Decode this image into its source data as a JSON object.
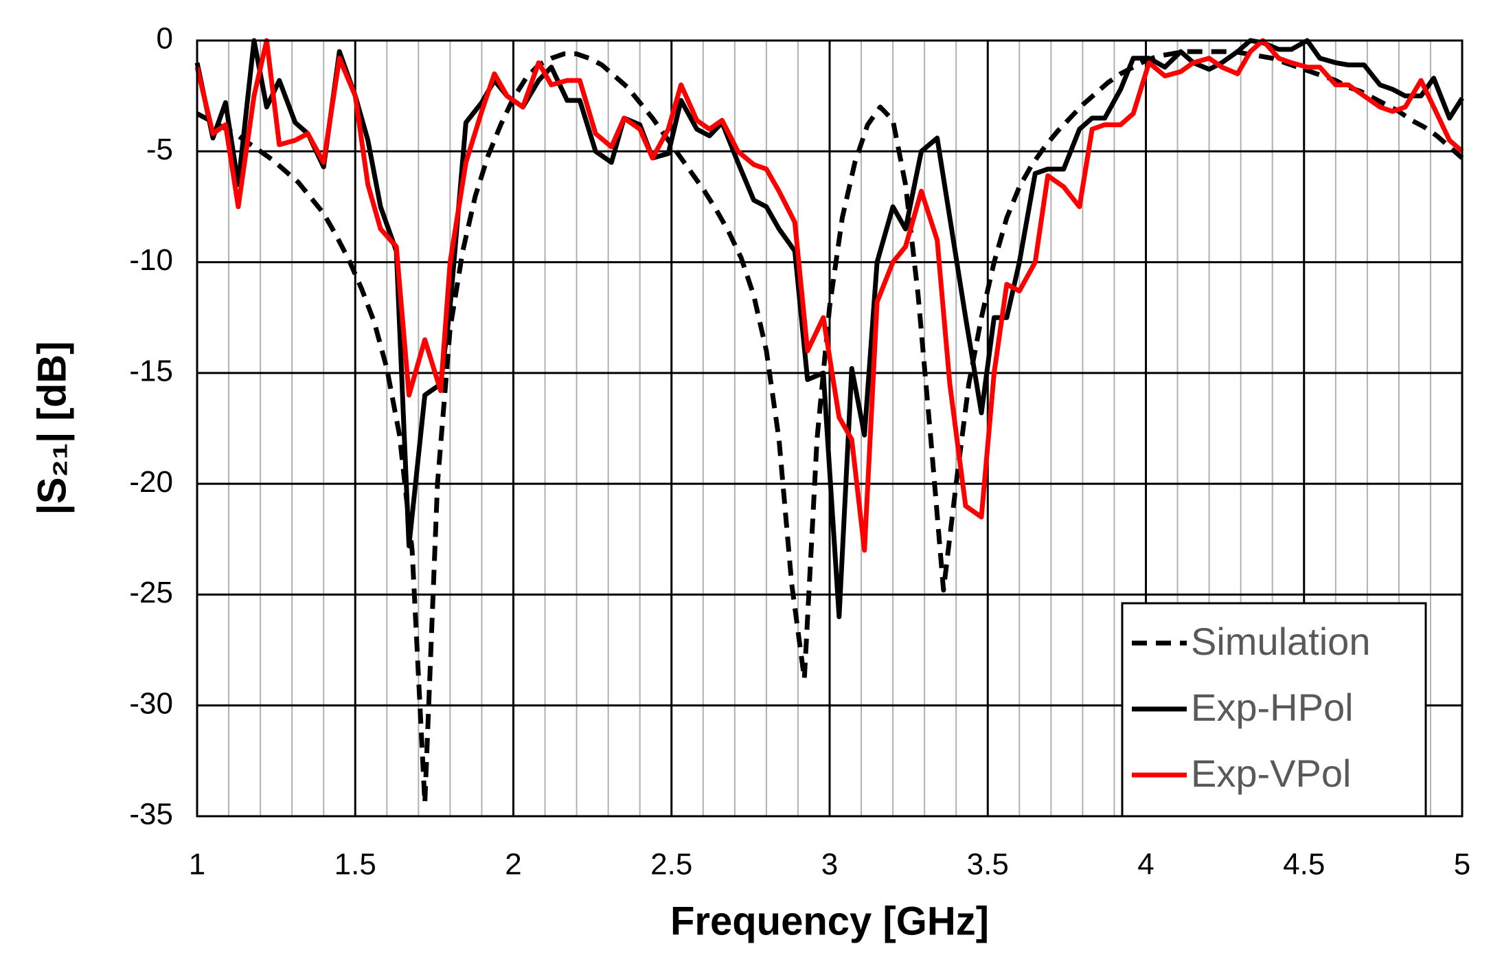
{
  "chart_data": {
    "type": "line",
    "xlabel": "Frequency [GHz]",
    "ylabel": "|S₂₁| [dB]",
    "xlim": [
      1,
      5
    ],
    "ylim": [
      -35,
      0
    ],
    "xticks": [
      1,
      1.5,
      2,
      2.5,
      3,
      3.5,
      4,
      4.5,
      5
    ],
    "xminor": [
      1.1,
      1.2,
      1.3,
      1.4,
      1.6,
      1.7,
      1.8,
      1.9,
      2.1,
      2.2,
      2.3,
      2.4,
      2.6,
      2.7,
      2.8,
      2.9,
      3.1,
      3.2,
      3.3,
      3.4,
      3.6,
      3.7,
      3.8,
      3.9,
      4.1,
      4.2,
      4.3,
      4.4,
      4.6,
      4.7,
      4.8,
      4.9
    ],
    "yticks": [
      0,
      -5,
      -10,
      -15,
      -20,
      -25,
      -30,
      -35
    ],
    "grid": true,
    "legend": "lower right",
    "series": [
      {
        "name": "Simulation",
        "color": "#000000",
        "dashed": true,
        "x": [
          1,
          1.04,
          1.08,
          1.12,
          1.16,
          1.2,
          1.24,
          1.28,
          1.32,
          1.36,
          1.4,
          1.44,
          1.48,
          1.52,
          1.56,
          1.6,
          1.64,
          1.68,
          1.72,
          1.76,
          1.8,
          1.84,
          1.88,
          1.92,
          1.96,
          2,
          2.04,
          2.08,
          2.12,
          2.16,
          2.2,
          2.24,
          2.28,
          2.32,
          2.36,
          2.4,
          2.44,
          2.48,
          2.52,
          2.56,
          2.6,
          2.64,
          2.68,
          2.72,
          2.76,
          2.8,
          2.84,
          2.88,
          2.92,
          2.96,
          3,
          3.04,
          3.08,
          3.12,
          3.16,
          3.2,
          3.24,
          3.28,
          3.32,
          3.36,
          3.4,
          3.44,
          3.48,
          3.52,
          3.56,
          3.6,
          3.64,
          3.68,
          3.72,
          3.76,
          3.8,
          3.84,
          3.88,
          3.92,
          3.96,
          4,
          4.04,
          4.08,
          4.12,
          4.16,
          4.2,
          4.24,
          4.28,
          4.32,
          4.36,
          4.4,
          4.44,
          4.48,
          4.52,
          4.56,
          4.6,
          4.64,
          4.68,
          4.72,
          4.76,
          4.8,
          4.84,
          4.88,
          4.92,
          4.96,
          5
        ],
        "values": [
          -3.3,
          -3.6,
          -3.9,
          -4.2,
          -4.6,
          -5,
          -5.4,
          -5.9,
          -6.4,
          -7.1,
          -7.8,
          -8.8,
          -9.9,
          -11.2,
          -12.7,
          -14.8,
          -17.8,
          -23,
          -34.4,
          -20,
          -13,
          -9.5,
          -7,
          -5.2,
          -3.8,
          -2.6,
          -1.7,
          -1.1,
          -0.8,
          -0.6,
          -0.6,
          -0.8,
          -1.1,
          -1.6,
          -2.1,
          -2.8,
          -3.5,
          -4.3,
          -5.1,
          -5.9,
          -6.7,
          -7.6,
          -8.6,
          -9.8,
          -11.5,
          -14,
          -18,
          -24.5,
          -28.8,
          -18,
          -12,
          -8,
          -5.5,
          -3.8,
          -3,
          -3.6,
          -6.5,
          -11.5,
          -18,
          -24.8,
          -20,
          -15.5,
          -12.5,
          -10,
          -8,
          -6.6,
          -5.6,
          -4.8,
          -4.1,
          -3.5,
          -2.9,
          -2.4,
          -1.9,
          -1.5,
          -1.2,
          -0.9,
          -0.7,
          -0.6,
          -0.5,
          -0.5,
          -0.5,
          -0.5,
          -0.5,
          -0.6,
          -0.7,
          -0.8,
          -1,
          -1.2,
          -1.4,
          -1.6,
          -1.8,
          -2.1,
          -2.3,
          -2.6,
          -2.9,
          -3.2,
          -3.6,
          -3.9,
          -4.3,
          -4.8,
          -5.3
        ]
      },
      {
        "name": "Exp-HPol",
        "color": "#000000",
        "x": [
          1,
          1.05,
          1.09,
          1.13,
          1.18,
          1.22,
          1.26,
          1.31,
          1.35,
          1.4,
          1.45,
          1.5,
          1.54,
          1.58,
          1.63,
          1.67,
          1.72,
          1.77,
          1.8,
          1.85,
          1.9,
          1.94,
          1.98,
          2.03,
          2.08,
          2.12,
          2.17,
          2.21,
          2.26,
          2.31,
          2.35,
          2.4,
          2.44,
          2.49,
          2.53,
          2.58,
          2.62,
          2.66,
          2.71,
          2.76,
          2.8,
          2.84,
          2.89,
          2.93,
          2.98,
          3.03,
          3.07,
          3.11,
          3.15,
          3.2,
          3.24,
          3.29,
          3.34,
          3.38,
          3.43,
          3.48,
          3.52,
          3.56,
          3.6,
          3.65,
          3.69,
          3.74,
          3.79,
          3.83,
          3.87,
          3.92,
          3.96,
          4.01,
          4.06,
          4.11,
          4.15,
          4.2,
          4.24,
          4.29,
          4.33,
          4.37,
          4.42,
          4.46,
          4.51,
          4.55,
          4.6,
          4.64,
          4.69,
          4.74,
          4.78,
          4.82,
          4.87,
          4.91,
          4.96,
          5
        ],
        "values": [
          -1,
          -4.4,
          -2.8,
          -6.5,
          0,
          -3,
          -1.8,
          -3.7,
          -4.2,
          -5.7,
          -0.5,
          -2.5,
          -4.5,
          -7.5,
          -9.5,
          -22.8,
          -16,
          -15.5,
          -12,
          -3.7,
          -2.8,
          -1.8,
          -2.5,
          -3,
          -1.8,
          -1.2,
          -2.7,
          -2.7,
          -5,
          -5.5,
          -3.5,
          -3.8,
          -5.3,
          -5.1,
          -2.7,
          -4,
          -4.3,
          -3.7,
          -5.5,
          -7.2,
          -7.5,
          -8.5,
          -9.5,
          -15.3,
          -15,
          -26,
          -14.8,
          -17.8,
          -10,
          -7.5,
          -8.5,
          -5,
          -4.4,
          -8,
          -12.5,
          -16.8,
          -12.5,
          -12.5,
          -10,
          -6,
          -5.8,
          -5.8,
          -4,
          -3.5,
          -3.5,
          -2.2,
          -0.8,
          -0.8,
          -1.2,
          -0.5,
          -1,
          -1.3,
          -1,
          -0.5,
          0,
          -0.1,
          -0.4,
          -0.4,
          0,
          -0.8,
          -1,
          -1.1,
          -1.1,
          -2,
          -2.2,
          -2.5,
          -2.5,
          -1.7,
          -3.5,
          -2.6
        ]
      },
      {
        "name": "Exp-VPol",
        "color": "#ff0000",
        "x": [
          1,
          1.05,
          1.09,
          1.13,
          1.18,
          1.22,
          1.26,
          1.31,
          1.35,
          1.4,
          1.45,
          1.5,
          1.54,
          1.58,
          1.63,
          1.67,
          1.72,
          1.77,
          1.8,
          1.85,
          1.9,
          1.94,
          1.98,
          2.03,
          2.08,
          2.12,
          2.17,
          2.21,
          2.26,
          2.31,
          2.35,
          2.4,
          2.44,
          2.49,
          2.53,
          2.58,
          2.62,
          2.66,
          2.71,
          2.76,
          2.8,
          2.84,
          2.89,
          2.93,
          2.98,
          3.03,
          3.07,
          3.11,
          3.15,
          3.2,
          3.24,
          3.29,
          3.34,
          3.38,
          3.43,
          3.48,
          3.52,
          3.56,
          3.6,
          3.65,
          3.69,
          3.74,
          3.79,
          3.83,
          3.87,
          3.92,
          3.96,
          4.01,
          4.06,
          4.11,
          4.15,
          4.2,
          4.24,
          4.29,
          4.33,
          4.37,
          4.42,
          4.46,
          4.51,
          4.55,
          4.6,
          4.64,
          4.69,
          4.74,
          4.78,
          4.82,
          4.87,
          4.91,
          4.96,
          5
        ],
        "values": [
          -1.2,
          -4.2,
          -3.8,
          -7.5,
          -2.5,
          0,
          -4.7,
          -4.5,
          -4.2,
          -5.5,
          -0.8,
          -2.5,
          -6.5,
          -8.5,
          -9.3,
          -16,
          -13.5,
          -15.8,
          -10,
          -5.5,
          -3.2,
          -1.5,
          -2.5,
          -3,
          -1,
          -2,
          -1.8,
          -1.8,
          -4.2,
          -4.8,
          -3.5,
          -4,
          -5.3,
          -4,
          -2,
          -3.6,
          -4,
          -3.6,
          -5,
          -5.6,
          -5.8,
          -6.8,
          -8.2,
          -14,
          -12.5,
          -17,
          -18,
          -23,
          -11.8,
          -10,
          -9.3,
          -6.8,
          -9,
          -15.5,
          -21,
          -21.5,
          -15,
          -11,
          -11.3,
          -10,
          -6.1,
          -6.6,
          -7.5,
          -4,
          -3.8,
          -3.8,
          -3.3,
          -1,
          -1.6,
          -1.4,
          -1,
          -0.8,
          -1.2,
          -1.5,
          -0.5,
          0,
          -0.8,
          -1,
          -1.2,
          -1.2,
          -2,
          -2,
          -2.5,
          -3,
          -3.2,
          -3,
          -1.8,
          -3,
          -4.5,
          -5
        ]
      }
    ]
  }
}
